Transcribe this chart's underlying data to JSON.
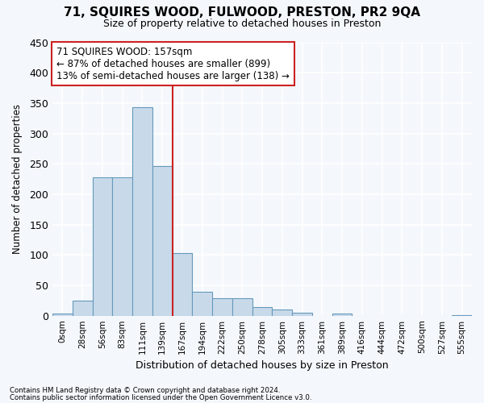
{
  "title": "71, SQUIRES WOOD, FULWOOD, PRESTON, PR2 9QA",
  "subtitle": "Size of property relative to detached houses in Preston",
  "xlabel": "Distribution of detached houses by size in Preston",
  "ylabel": "Number of detached properties",
  "footnote1": "Contains HM Land Registry data © Crown copyright and database right 2024.",
  "footnote2": "Contains public sector information licensed under the Open Government Licence v3.0.",
  "bar_color": "#c8daea",
  "bar_edge_color": "#6699bb",
  "vline_color": "#cc2222",
  "vline_x_index": 6,
  "annotation_text": "71 SQUIRES WOOD: 157sqm\n← 87% of detached houses are smaller (899)\n13% of semi-detached houses are larger (138) →",
  "annotation_box_color": "#ffffff",
  "annotation_box_edge": "#cc2222",
  "categories": [
    "0sqm",
    "28sqm",
    "56sqm",
    "83sqm",
    "111sqm",
    "139sqm",
    "167sqm",
    "194sqm",
    "222sqm",
    "250sqm",
    "278sqm",
    "305sqm",
    "333sqm",
    "361sqm",
    "389sqm",
    "416sqm",
    "444sqm",
    "472sqm",
    "500sqm",
    "527sqm",
    "555sqm"
  ],
  "values": [
    3,
    25,
    228,
    228,
    343,
    247,
    103,
    40,
    29,
    29,
    14,
    10,
    5,
    0,
    4,
    0,
    0,
    0,
    0,
    0,
    1
  ],
  "ylim": [
    0,
    450
  ],
  "yticks": [
    0,
    50,
    100,
    150,
    200,
    250,
    300,
    350,
    400,
    450
  ],
  "background_color": "#f4f8fc",
  "grid_color": "#ffffff",
  "fig_width": 6.0,
  "fig_height": 5.0
}
